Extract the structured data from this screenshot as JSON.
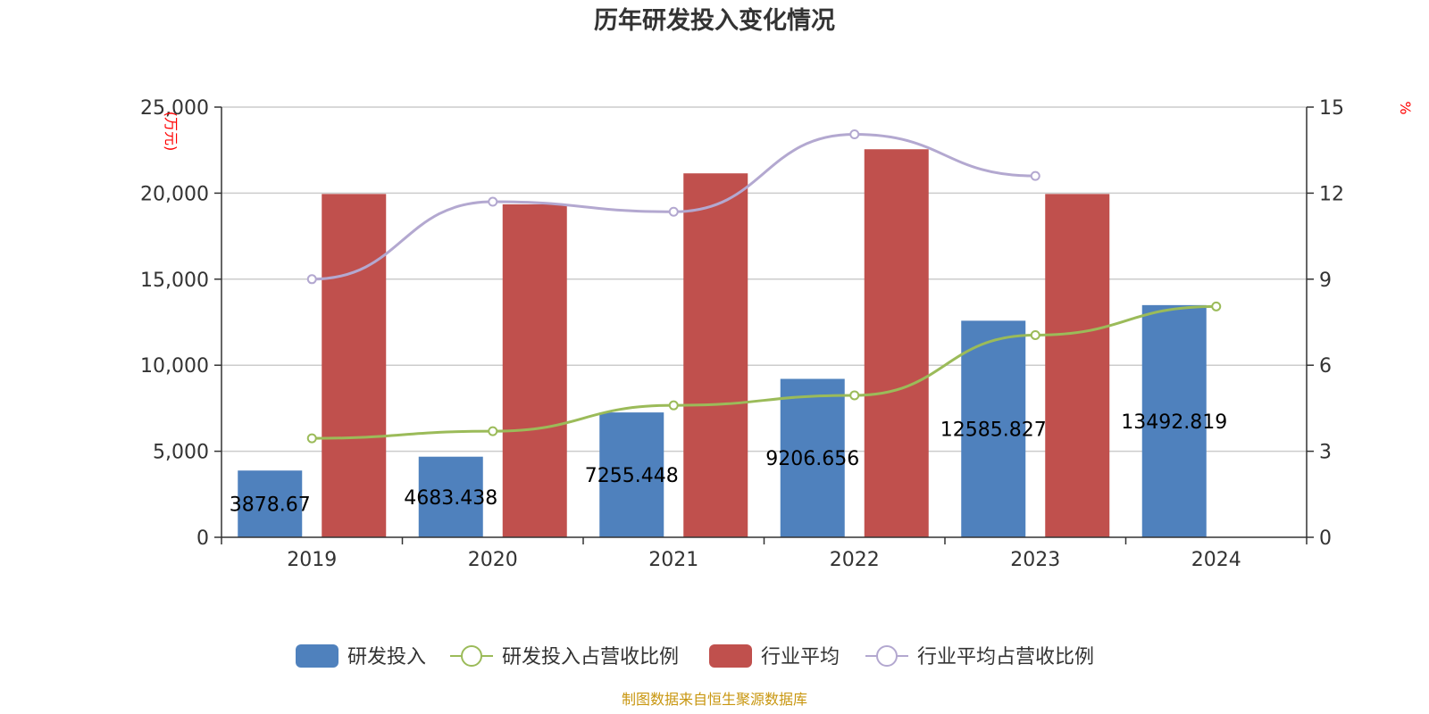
{
  "chart_data": {
    "type": "bar",
    "title": "历年研发投入变化情况",
    "categories": [
      "2019",
      "2020",
      "2021",
      "2022",
      "2023",
      "2024"
    ],
    "y_left": {
      "unit_label": "(万元)",
      "ylim": [
        0,
        25000
      ],
      "ticks": [
        "0",
        "5,000",
        "10,000",
        "15,000",
        "20,000",
        "25,000"
      ],
      "tick_values": [
        0,
        5000,
        10000,
        15000,
        20000,
        25000
      ]
    },
    "y_right": {
      "unit_label": "%",
      "ylim": [
        0,
        15
      ],
      "ticks": [
        "0",
        "3",
        "6",
        "9",
        "12",
        "15"
      ],
      "tick_values": [
        0,
        3,
        6,
        9,
        12,
        15
      ]
    },
    "series": [
      {
        "name": "研发投入",
        "kind": "bar",
        "axis": "left",
        "color": "#4f81bd",
        "values": [
          3878.67,
          4683.438,
          7255.448,
          9206.656,
          12585.827,
          13492.819
        ],
        "labels": [
          "3878.67",
          "4683.438",
          "7255.448",
          "9206.656",
          "12585.827",
          "13492.819"
        ]
      },
      {
        "name": "研发投入占营收比例",
        "kind": "line",
        "axis": "right",
        "color": "#9bbb59",
        "values": [
          3.45,
          3.7,
          4.6,
          4.95,
          7.05,
          8.05
        ]
      },
      {
        "name": "行业平均",
        "kind": "bar",
        "axis": "left",
        "color": "#c0504d",
        "values": [
          19950,
          19350,
          21150,
          22550,
          19950,
          null
        ]
      },
      {
        "name": "行业平均占营收比例",
        "kind": "line",
        "axis": "right",
        "color": "#b3a8d0",
        "values": [
          9.0,
          11.7,
          11.35,
          14.05,
          12.6,
          null
        ]
      }
    ],
    "grid": true,
    "legend_position": "bottom"
  },
  "source_note": "制图数据来自恒生聚源数据库"
}
